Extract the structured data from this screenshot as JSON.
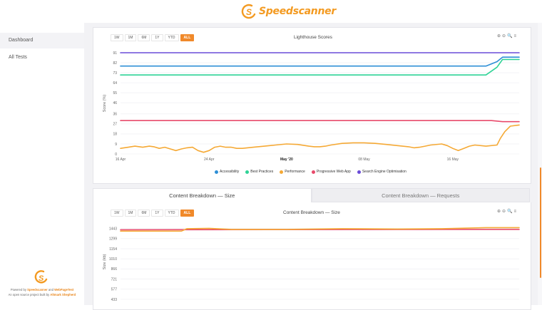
{
  "header": {
    "brand": "Speedscanner"
  },
  "sidebar": {
    "items": [
      {
        "label": "Dashboard",
        "active": true
      },
      {
        "label": "All Tests",
        "active": false
      }
    ],
    "credits": {
      "powered_by": "Powered by",
      "speedscanner": "Speedscanner",
      "and": "and",
      "webpagetest": "WebPageTest",
      "open_source": "An open source project built by",
      "author": "Altmark Shepherd"
    }
  },
  "ranges": [
    "1W",
    "1M",
    "6M",
    "1Y",
    "YTD",
    "ALL"
  ],
  "active_range": "ALL",
  "tools": {
    "zoom_in": "⊕",
    "zoom_out": "⊖",
    "search": "🔍",
    "menu": "≡"
  },
  "chart_data": [
    {
      "type": "line",
      "title": "Lighthouse Scores",
      "ylabel": "Score (%)",
      "xlabel": "",
      "y_ticks": [
        0,
        9,
        18,
        27,
        36,
        46,
        55,
        64,
        73,
        82,
        91
      ],
      "ylim": [
        0,
        91
      ],
      "x_ticks": [
        "16 Apr",
        "24 Apr",
        "May '20",
        "08 May",
        "16 May"
      ],
      "x_tick_positions_days": [
        0,
        8,
        15,
        22,
        30
      ],
      "xlim_days": [
        0,
        36
      ],
      "grid": true,
      "legend": "bottom",
      "series": [
        {
          "name": "Accessibility",
          "color": "#2e8fd6",
          "points": [
            [
              0,
              79
            ],
            [
              33,
              79
            ],
            [
              34,
              83
            ],
            [
              34.5,
              87
            ],
            [
              36,
              87
            ]
          ]
        },
        {
          "name": "Best Practices",
          "color": "#2fd396",
          "points": [
            [
              0,
              71
            ],
            [
              33,
              71
            ],
            [
              34,
              78
            ],
            [
              34.5,
              85
            ],
            [
              36,
              85
            ]
          ]
        },
        {
          "name": "Performance",
          "color": "#f5a935",
          "points": [
            [
              0,
              5
            ],
            [
              0.7,
              6
            ],
            [
              1.3,
              7
            ],
            [
              2,
              6
            ],
            [
              2.6,
              7
            ],
            [
              3,
              6.5
            ],
            [
              3.5,
              5
            ],
            [
              4,
              6
            ],
            [
              4.5,
              4.5
            ],
            [
              5,
              3
            ],
            [
              5.5,
              4.5
            ],
            [
              6,
              5.5
            ],
            [
              6.5,
              6
            ],
            [
              7,
              3
            ],
            [
              7.5,
              1.5
            ],
            [
              8,
              3
            ],
            [
              8.5,
              6
            ],
            [
              9,
              7
            ],
            [
              9.5,
              6
            ],
            [
              10,
              6
            ],
            [
              10.5,
              5
            ],
            [
              11,
              5
            ],
            [
              12,
              6
            ],
            [
              13,
              7
            ],
            [
              14,
              8
            ],
            [
              15,
              9
            ],
            [
              16,
              8.5
            ],
            [
              17,
              7
            ],
            [
              17.5,
              6.5
            ],
            [
              18,
              6.5
            ],
            [
              18.5,
              7
            ],
            [
              19,
              8
            ],
            [
              20,
              9.5
            ],
            [
              21,
              10
            ],
            [
              22,
              10
            ],
            [
              23,
              9.5
            ],
            [
              24,
              8.5
            ],
            [
              25,
              7.5
            ],
            [
              26,
              6.5
            ],
            [
              26.5,
              5.5
            ],
            [
              27,
              6
            ],
            [
              27.5,
              7
            ],
            [
              28,
              8
            ],
            [
              29,
              9
            ],
            [
              29.5,
              7.5
            ],
            [
              30,
              5
            ],
            [
              30.5,
              3
            ],
            [
              31,
              5
            ],
            [
              31.5,
              7
            ],
            [
              32,
              8
            ],
            [
              33,
              7
            ],
            [
              34,
              8
            ],
            [
              34.3,
              14
            ],
            [
              34.7,
              20
            ],
            [
              35.2,
              25
            ],
            [
              36,
              26
            ]
          ]
        },
        {
          "name": "Progressive Web App",
          "color": "#e84a6b",
          "points": [
            [
              0,
              30
            ],
            [
              33.5,
              30
            ],
            [
              34.5,
              29
            ],
            [
              36,
              29
            ]
          ]
        },
        {
          "name": "Search Engine Optimisation",
          "color": "#6a4cd8",
          "points": [
            [
              0,
              91
            ],
            [
              36,
              91
            ]
          ]
        }
      ]
    },
    {
      "type": "line",
      "title": "Content Breakdown — Size",
      "ylabel": "Size (kb)",
      "xlabel": "",
      "y_ticks": [
        433,
        577,
        721,
        866,
        1010,
        1154,
        1299,
        1443
      ],
      "ylim": [
        433,
        1500
      ],
      "xlim_days": [
        0,
        36
      ],
      "grid": true,
      "series": [
        {
          "name": "",
          "color": "#e84a6b",
          "points": [
            [
              0,
              1425
            ],
            [
              36,
              1430
            ]
          ]
        },
        {
          "name": "",
          "color": "#f5a935",
          "points": [
            [
              0,
              1405
            ],
            [
              5.5,
              1405
            ],
            [
              6,
              1440
            ],
            [
              8,
              1445
            ],
            [
              10,
              1430
            ],
            [
              15,
              1430
            ],
            [
              20,
              1440
            ],
            [
              25,
              1435
            ],
            [
              29,
              1440
            ],
            [
              33,
              1455
            ],
            [
              36,
              1455
            ]
          ]
        }
      ]
    }
  ],
  "tabs": [
    {
      "label": "Content Breakdown — Size",
      "active": true
    },
    {
      "label": "Content Breakdown — Requests",
      "active": false
    }
  ]
}
